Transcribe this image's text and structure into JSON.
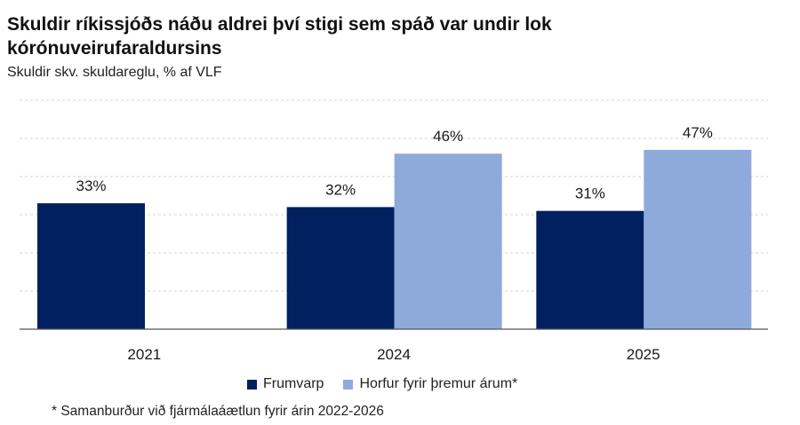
{
  "title": "Skuldir ríkissjóðs náðu aldrei því stigi sem spáð var undir lok kórónuveirufaraldursins",
  "subtitle": "Skuldir skv. skuldareglu, % af VLF",
  "footnote": "* Samanburður við fjármálaáætlun fyrir árin 2022-2026",
  "chart_data": {
    "type": "bar",
    "categories": [
      "2021",
      "2024",
      "2025"
    ],
    "series": [
      {
        "name": "Frumvarp",
        "values": [
          33,
          32,
          31
        ],
        "labels": [
          "33%",
          "32%",
          "31%"
        ],
        "color": "#002060"
      },
      {
        "name": "Horfur fyrir þremur árum*",
        "values": [
          null,
          46,
          47
        ],
        "labels": [
          "",
          "46%",
          "47%"
        ],
        "color": "#8eaadb"
      }
    ],
    "ylim": [
      0,
      60
    ],
    "grid": true,
    "legend_position": "bottom"
  }
}
